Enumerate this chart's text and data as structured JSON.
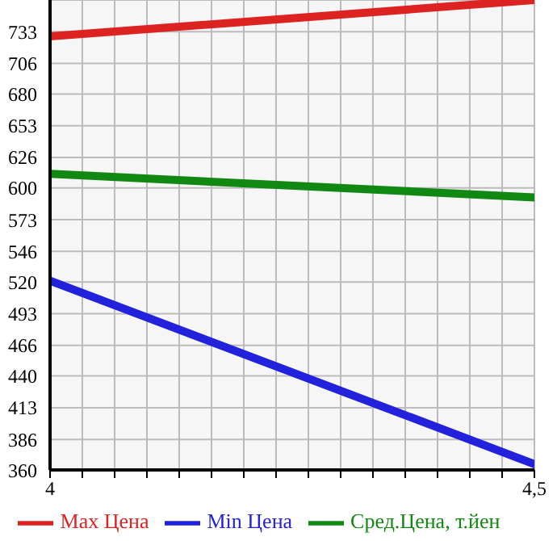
{
  "chart_data": {
    "type": "line",
    "x": [
      4,
      4.5
    ],
    "series": [
      {
        "name": "Max Цена",
        "color": "#dd2222",
        "values": [
          729,
          760
        ]
      },
      {
        "name": "Min Цена",
        "color": "#2222dd",
        "values": [
          521,
          365
        ]
      },
      {
        "name": "Сред.Цена, т.йен",
        "color": "#118811",
        "values": [
          612,
          592
        ]
      }
    ],
    "xlim": [
      4,
      4.5
    ],
    "xticks": [
      4,
      {
        "value": 4.0333,
        "label": null
      },
      {
        "value": 4.0667,
        "label": null
      },
      {
        "value": 4.1,
        "label": null
      },
      {
        "value": 4.1333,
        "label": null
      },
      {
        "value": 4.1667,
        "label": null
      },
      {
        "value": 4.2,
        "label": null
      },
      {
        "value": 4.2333,
        "label": null
      },
      {
        "value": 4.2667,
        "label": null
      },
      {
        "value": 4.3,
        "label": null
      },
      {
        "value": 4.3333,
        "label": null
      },
      {
        "value": 4.3667,
        "label": null
      },
      {
        "value": 4.4,
        "label": null
      },
      {
        "value": 4.4333,
        "label": null
      },
      {
        "value": 4.4667,
        "label": null
      },
      {
        "value": 4.5,
        "label": "4,5"
      }
    ],
    "ylim": [
      360,
      760
    ],
    "yticks": [
      360,
      386,
      413,
      440,
      466,
      493,
      520,
      546,
      573,
      600,
      626,
      653,
      680,
      706,
      733,
      {
        "value": 760,
        "label": null
      }
    ],
    "grid": true,
    "legend": "bottom",
    "marker": "none",
    "line_style": "solid"
  }
}
